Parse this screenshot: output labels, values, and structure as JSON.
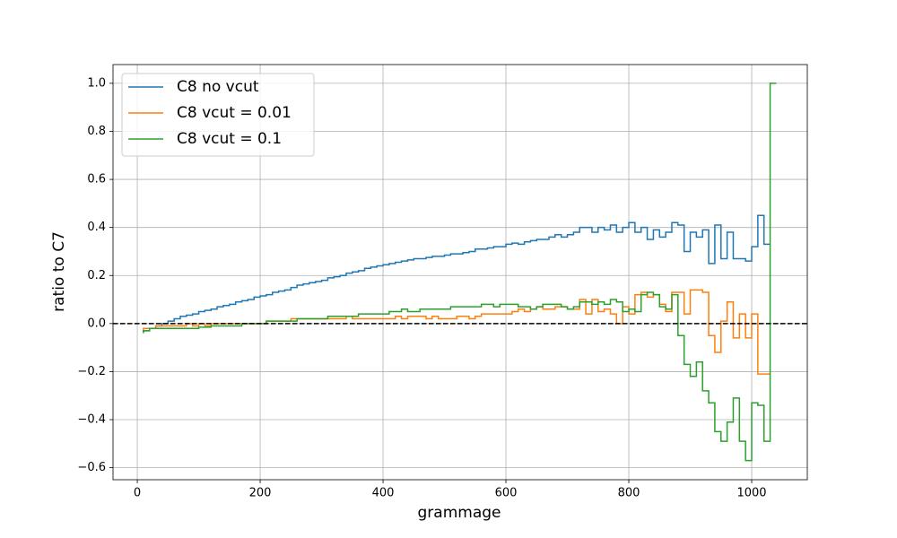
{
  "chart_data": {
    "type": "step",
    "step_where": "pre",
    "xlabel": "grammage",
    "ylabel": "ratio to C7",
    "xlim": [
      -39.5,
      1090.5
    ],
    "ylim": [
      -0.65,
      1.078
    ],
    "xticks": [
      0,
      200,
      400,
      600,
      800,
      1000
    ],
    "yticks": [
      {
        "value": -0.6,
        "label": "−0.6"
      },
      {
        "value": -0.4,
        "label": "−0.4"
      },
      {
        "value": -0.2,
        "label": "−0.2"
      },
      {
        "value": 0,
        "label": "0.0"
      },
      0.2,
      0.4,
      0.6,
      0.8,
      {
        "value": 1,
        "label": "1.0"
      }
    ],
    "grid": true,
    "legend": "upper left",
    "hline": 0,
    "hline_color": "#000000",
    "x": [
      10,
      20,
      30,
      40,
      50,
      60,
      70,
      80,
      90,
      100,
      110,
      120,
      130,
      140,
      150,
      160,
      170,
      180,
      190,
      200,
      210,
      220,
      230,
      240,
      250,
      260,
      270,
      280,
      290,
      300,
      310,
      320,
      330,
      340,
      350,
      360,
      370,
      380,
      390,
      400,
      410,
      420,
      430,
      440,
      450,
      460,
      470,
      480,
      490,
      500,
      510,
      520,
      530,
      540,
      550,
      560,
      570,
      580,
      590,
      600,
      610,
      620,
      630,
      640,
      650,
      660,
      670,
      680,
      690,
      700,
      710,
      720,
      730,
      740,
      750,
      760,
      770,
      780,
      790,
      800,
      810,
      820,
      830,
      840,
      850,
      860,
      870,
      880,
      890,
      900,
      910,
      920,
      930,
      940,
      950,
      960,
      970,
      980,
      990,
      1000,
      1010,
      1020,
      1030,
      1040
    ],
    "series": [
      {
        "name": "C8 no vcut",
        "color": "#1f77b4",
        "values": [
          -0.04,
          -0.03,
          -0.02,
          -0.01,
          0,
          0.01,
          0.02,
          0.03,
          0.035,
          0.04,
          0.05,
          0.055,
          0.06,
          0.07,
          0.075,
          0.08,
          0.09,
          0.095,
          0.1,
          0.11,
          0.115,
          0.12,
          0.13,
          0.135,
          0.14,
          0.15,
          0.16,
          0.165,
          0.17,
          0.175,
          0.18,
          0.19,
          0.195,
          0.2,
          0.21,
          0.215,
          0.22,
          0.23,
          0.235,
          0.24,
          0.245,
          0.25,
          0.255,
          0.26,
          0.265,
          0.27,
          0.27,
          0.275,
          0.28,
          0.28,
          0.285,
          0.29,
          0.29,
          0.295,
          0.3,
          0.31,
          0.31,
          0.315,
          0.32,
          0.32,
          0.33,
          0.335,
          0.33,
          0.34,
          0.345,
          0.35,
          0.35,
          0.36,
          0.37,
          0.36,
          0.37,
          0.38,
          0.4,
          0.4,
          0.38,
          0.4,
          0.39,
          0.41,
          0.38,
          0.4,
          0.42,
          0.38,
          0.4,
          0.35,
          0.39,
          0.36,
          0.38,
          0.42,
          0.41,
          0.3,
          0.38,
          0.36,
          0.39,
          0.25,
          0.41,
          0.27,
          0.38,
          0.27,
          0.27,
          0.26,
          0.32,
          0.45,
          0.33,
          null
        ]
      },
      {
        "name": "C8 vcut = 0.01",
        "color": "#ff7f0e",
        "values": [
          -0.03,
          -0.02,
          -0.02,
          -0.01,
          -0.01,
          -0.01,
          -0.01,
          -0.01,
          0,
          -0.01,
          0,
          -0.01,
          0,
          0,
          0,
          0,
          0,
          0,
          0,
          0,
          0,
          0.01,
          0.01,
          0.01,
          0.01,
          0.02,
          0.02,
          0.02,
          0.02,
          0.02,
          0.02,
          0.02,
          0.02,
          0.02,
          0.03,
          0.02,
          0.02,
          0.02,
          0.02,
          0.02,
          0.02,
          0.02,
          0.03,
          0.02,
          0.03,
          0.03,
          0.03,
          0.02,
          0.03,
          0.02,
          0.02,
          0.02,
          0.03,
          0.03,
          0.02,
          0.03,
          0.04,
          0.04,
          0.04,
          0.04,
          0.04,
          0.05,
          0.06,
          0.05,
          0.06,
          0.07,
          0.06,
          0.06,
          0.07,
          0.07,
          0.06,
          0.06,
          0.1,
          0.04,
          0.1,
          0.05,
          0.06,
          0.04,
          0,
          0.07,
          0.04,
          0.12,
          0.13,
          0.11,
          0.12,
          0.08,
          0.05,
          0.13,
          0.13,
          0.04,
          0.14,
          0.14,
          0.13,
          -0.05,
          -0.12,
          0.01,
          0.09,
          -0.06,
          0.04,
          -0.06,
          0.04,
          -0.21,
          -0.21,
          null
        ]
      },
      {
        "name": "C8 vcut = 0.1",
        "color": "#2ca02c",
        "values": [
          -0.04,
          -0.03,
          -0.02,
          -0.02,
          -0.02,
          -0.02,
          -0.02,
          -0.02,
          -0.02,
          -0.02,
          -0.015,
          -0.015,
          -0.01,
          -0.01,
          -0.01,
          -0.01,
          -0.01,
          0,
          0,
          0,
          0,
          0.01,
          0.01,
          0.01,
          0.01,
          0.01,
          0.02,
          0.02,
          0.02,
          0.02,
          0.02,
          0.03,
          0.03,
          0.03,
          0.03,
          0.03,
          0.04,
          0.04,
          0.04,
          0.04,
          0.04,
          0.05,
          0.05,
          0.06,
          0.05,
          0.05,
          0.06,
          0.06,
          0.06,
          0.06,
          0.06,
          0.07,
          0.07,
          0.07,
          0.07,
          0.07,
          0.08,
          0.08,
          0.07,
          0.08,
          0.08,
          0.08,
          0.07,
          0.07,
          0.06,
          0.07,
          0.08,
          0.08,
          0.08,
          0.07,
          0.06,
          0.07,
          0.09,
          0.09,
          0.08,
          0.09,
          0.08,
          0.1,
          0.09,
          0.05,
          0.06,
          0.05,
          0.12,
          0.13,
          0.12,
          0.07,
          0.06,
          0.12,
          -0.05,
          -0.17,
          -0.22,
          -0.16,
          -0.28,
          -0.33,
          -0.45,
          -0.49,
          -0.41,
          -0.31,
          -0.49,
          -0.57,
          -0.33,
          -0.34,
          -0.49,
          1.0
        ]
      }
    ]
  }
}
